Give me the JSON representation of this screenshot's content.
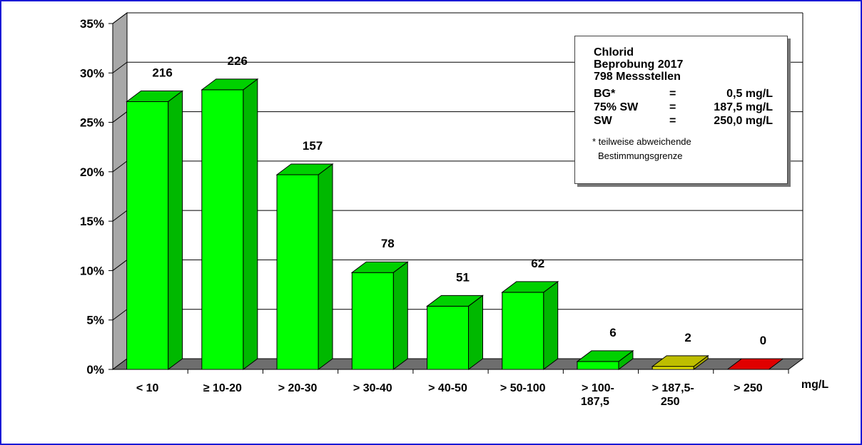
{
  "chart_data": {
    "type": "bar",
    "categories": [
      "< 10",
      "≥ 10-20",
      "> 20-30",
      "> 30-40",
      "> 40-50",
      "> 50-100",
      "> 100-\n187,5",
      "> 187,5-\n250",
      "> 250"
    ],
    "values": [
      27.1,
      28.3,
      19.7,
      9.8,
      6.4,
      7.8,
      0.8,
      0.3,
      0.0
    ],
    "data_labels": [
      "216",
      "226",
      "157",
      "78",
      "51",
      "62",
      "6",
      "2",
      "0"
    ],
    "bar_colors": [
      "#00ff00",
      "#00ff00",
      "#00ff00",
      "#00ff00",
      "#00ff00",
      "#00ff00",
      "#00ff00",
      "#e8e800",
      "#e00000"
    ],
    "ylim": [
      0,
      35
    ],
    "yticks": [
      "0%",
      "5%",
      "10%",
      "15%",
      "20%",
      "25%",
      "30%",
      "35%"
    ],
    "xunit": "mg/L",
    "grid": true,
    "legend_box": {
      "title_lines": [
        "Chlorid",
        "Beprobung 2017",
        "798 Messstellen"
      ],
      "rows": [
        {
          "key": "BG*",
          "eq": "=",
          "value": "0,5 mg/L"
        },
        {
          "key": "75% SW",
          "eq": "=",
          "value": "187,5 mg/L"
        },
        {
          "key": "SW",
          "eq": "=",
          "value": "250,0 mg/L"
        }
      ],
      "note_lines": [
        "* teilweise abweichende",
        "Bestimmungsgrenze"
      ]
    }
  }
}
